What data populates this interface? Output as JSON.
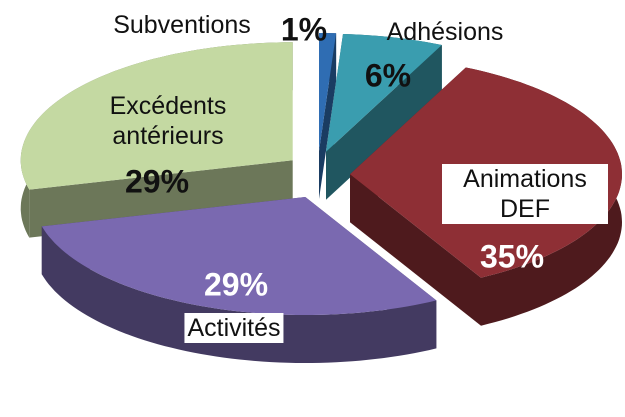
{
  "chart_data": {
    "type": "pie3d",
    "categories": [
      "Subventions",
      "Adhésions",
      "Animations DEF",
      "Activités",
      "Excédents antérieurs"
    ],
    "values": [
      1,
      6,
      35,
      29,
      29
    ],
    "value_labels": [
      "1%",
      "6%",
      "35%",
      "29%",
      "29%"
    ],
    "colors": [
      "#2f6db3",
      "#3a9daf",
      "#8e2f35",
      "#7a69b0",
      "#c4d9a2"
    ]
  }
}
